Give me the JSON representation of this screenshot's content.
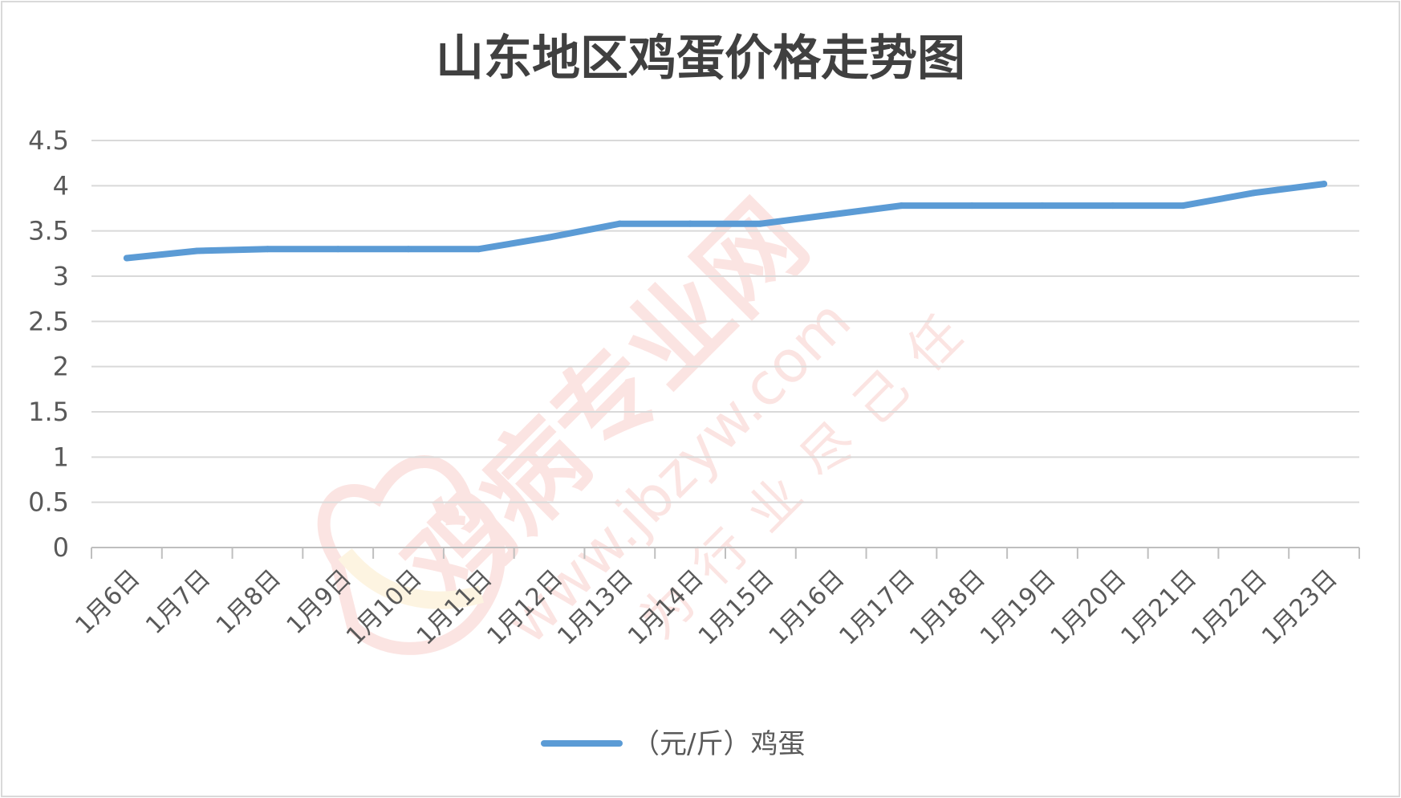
{
  "chart_data": {
    "type": "line",
    "title": "山东地区鸡蛋价格走势图",
    "xlabel": "",
    "ylabel": "",
    "categories": [
      "1月6日",
      "1月7日",
      "1月8日",
      "1月9日",
      "1月10日",
      "1月11日",
      "1月12日",
      "1月13日",
      "1月14日",
      "1月15日",
      "1月16日",
      "1月17日",
      "1月18日",
      "1月19日",
      "1月20日",
      "1月21日",
      "1月22日",
      "1月23日"
    ],
    "series": [
      {
        "name": "（元/斤）鸡蛋",
        "color": "#5b9bd5",
        "values": [
          3.2,
          3.28,
          3.3,
          3.3,
          3.3,
          3.3,
          3.43,
          3.58,
          3.58,
          3.58,
          3.68,
          3.78,
          3.78,
          3.78,
          3.78,
          3.78,
          3.92,
          4.02
        ]
      }
    ],
    "ylim": [
      0,
      4.5
    ],
    "yticks": [
      "0",
      "0.5",
      "1",
      "1.5",
      "2",
      "2.5",
      "3",
      "3.5",
      "4",
      "4.5"
    ],
    "grid": true,
    "legend": "bottom"
  },
  "watermark": {
    "brand": "鸡病专业网",
    "url": "www.jbzyw.com",
    "slogan": "为行业尽己任"
  }
}
